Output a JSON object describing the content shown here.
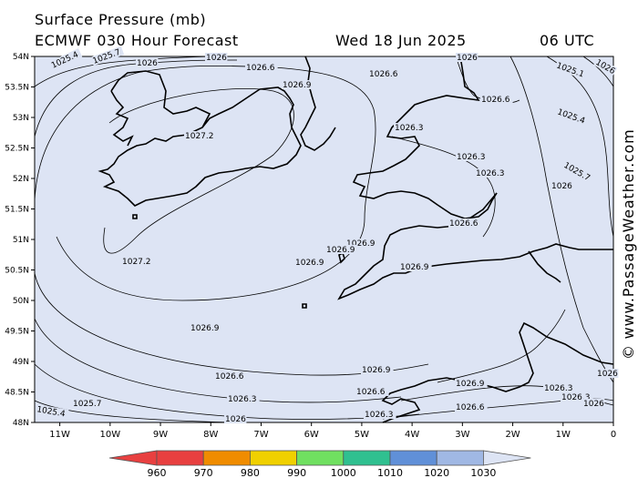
{
  "header": {
    "title": "Surface Pressure (mb)",
    "model": "ECMWF 030 Hour Forecast",
    "valid_date": "Wed 18 Jun 2025",
    "valid_time": "06 UTC"
  },
  "watermark": "© www.PassageWeather.com",
  "axes": {
    "lat_labels": [
      "54N",
      "53.5N",
      "53N",
      "52.5N",
      "52N",
      "51.5N",
      "51N",
      "50.5N",
      "50N",
      "49.5N",
      "49N",
      "48.5N",
      "48N"
    ],
    "lon_labels": [
      "11W",
      "10W",
      "9W",
      "8W",
      "7W",
      "6W",
      "5W",
      "4W",
      "3W",
      "2W",
      "1W",
      "0"
    ]
  },
  "isobar_labels": [
    "1025.4",
    "1025.7",
    "1026",
    "1026",
    "1026",
    "1026.6",
    "1026.9",
    "1027.2",
    "1026.6",
    "1026.6",
    "1026.3",
    "1025.1",
    "1025.4",
    "1025.7",
    "1026",
    "1026.3",
    "1026.3",
    "1026.6",
    "1026.9",
    "1026.9",
    "1026.9",
    "1026.9",
    "1027.2",
    "1026.9",
    "1026.9",
    "1026.6",
    "1026.3",
    "1026",
    "1026.3",
    "1026.6",
    "1026.6",
    "1026.3",
    "1026",
    "1025.7",
    "1025.4",
    "1026.9",
    "1026",
    "1026.3",
    "1026.6",
    "1026"
  ],
  "legend": {
    "ticks": [
      "960",
      "970",
      "980",
      "990",
      "1000",
      "1010",
      "1020",
      "1030"
    ],
    "colors": [
      "#e84040",
      "#f08c00",
      "#f0d000",
      "#70e060",
      "#30c090",
      "#6090d8",
      "#a0b8e4",
      "#dde4f4"
    ]
  },
  "colors": {
    "sea": "#dde4f4",
    "land": "#dde4f4",
    "coast": "#000000",
    "isobar": "#000000"
  }
}
